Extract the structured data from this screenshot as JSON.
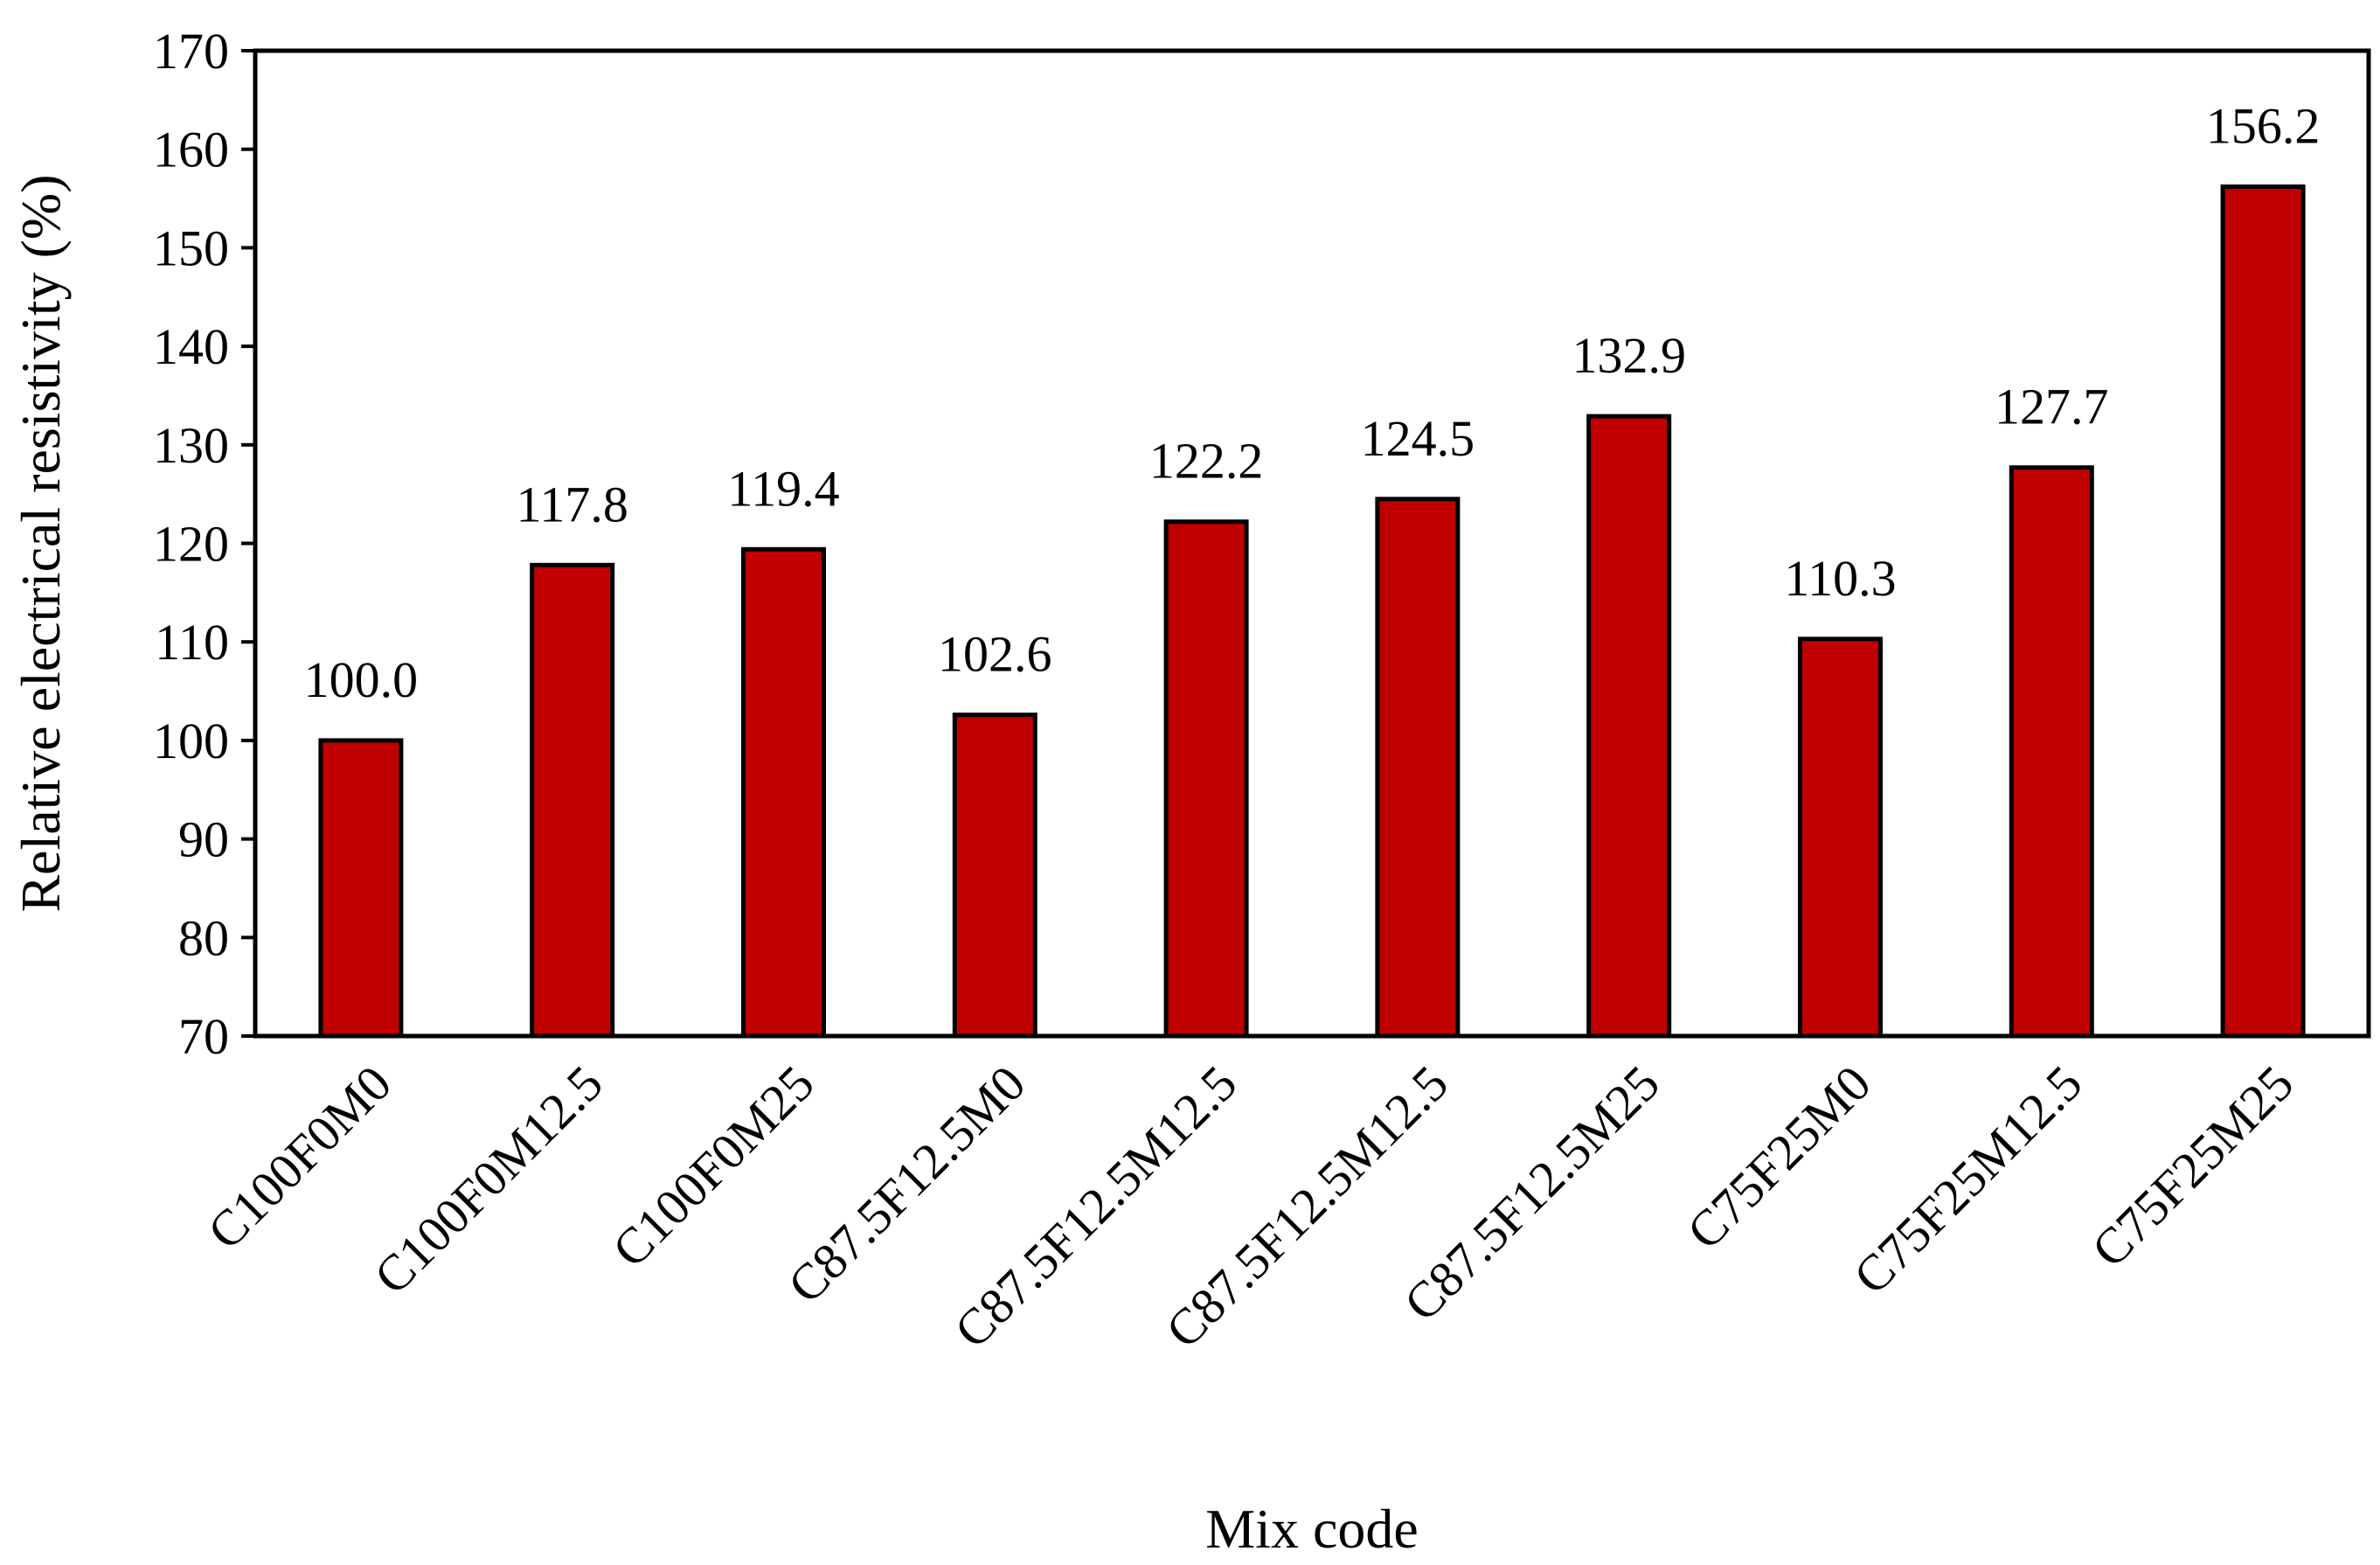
{
  "chart_data": {
    "type": "bar",
    "xlabel": "Mix code",
    "ylabel": "Relative electrical resistivity (%)",
    "ylim": [
      70,
      170
    ],
    "yticks": [
      70,
      80,
      90,
      100,
      110,
      120,
      130,
      140,
      150,
      160,
      170
    ],
    "grid": false,
    "legend": "none",
    "bar_color": "#C00000",
    "categories": [
      "C100F0M0",
      "C100F0M12.5",
      "C100F0M25",
      "C87.5F12.5M0",
      "C87.5F12.5M12.5",
      "C87.5F12.5M12.5",
      "C87.5F12.5M25",
      "C75F25M0",
      "C75F25M12.5",
      "C75F25M25"
    ],
    "values": [
      100.0,
      117.8,
      119.4,
      102.6,
      122.2,
      124.5,
      132.9,
      110.3,
      127.7,
      156.2
    ],
    "data_labels": [
      "100.0",
      "117.8",
      "119.4",
      "102.6",
      "122.2",
      "124.5",
      "132.9",
      "110.3",
      "127.7",
      "156.2"
    ]
  }
}
